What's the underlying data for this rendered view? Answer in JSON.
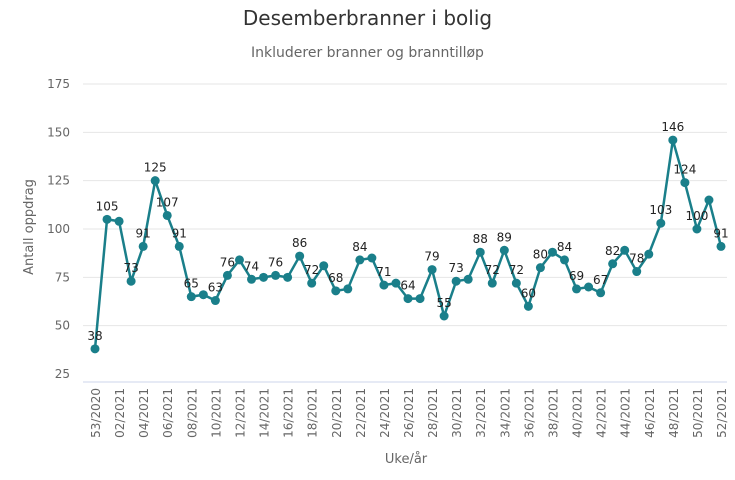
{
  "chart_data": {
    "type": "line",
    "title": "Desemberbranner i bolig",
    "subtitle": "Inkluderer branner og branntilløp",
    "xlabel": "Uke/år",
    "ylabel": "Antall oppdrag",
    "ylim": [
      25,
      175
    ],
    "yticks": [
      25,
      50,
      75,
      100,
      125,
      150,
      175
    ],
    "grid": true,
    "legend": "none",
    "color": "#1a7f8a",
    "x_tick_labels": [
      "53/2020",
      "02/2021",
      "04/2021",
      "06/2021",
      "08/2021",
      "10/2021",
      "12/2021",
      "14/2021",
      "16/2021",
      "18/2021",
      "20/2021",
      "22/2021",
      "24/2021",
      "26/2021",
      "28/2021",
      "30/2021",
      "32/2021",
      "34/2021",
      "36/2021",
      "38/2021",
      "40/2021",
      "42/2021",
      "44/2021",
      "46/2021",
      "48/2021",
      "50/2021",
      "52/2021"
    ],
    "values": [
      38,
      105,
      104,
      73,
      91,
      125,
      107,
      91,
      65,
      66,
      63,
      76,
      84,
      74,
      75,
      76,
      75,
      86,
      72,
      81,
      68,
      69,
      84,
      85,
      71,
      72,
      64,
      64,
      79,
      55,
      73,
      74,
      88,
      72,
      89,
      72,
      60,
      80,
      88,
      84,
      69,
      70,
      67,
      82,
      89,
      78,
      87,
      103,
      146,
      124,
      100,
      115,
      91
    ],
    "labels": [
      "38",
      "105",
      "",
      "73",
      "91",
      "125",
      "107",
      "91",
      "65",
      "",
      "63",
      "76",
      "",
      "74",
      "",
      "76",
      "",
      "86",
      "72",
      "",
      "68",
      "",
      "84",
      "",
      "71",
      "",
      "64",
      "",
      "79",
      "55",
      "73",
      "",
      "88",
      "72",
      "89",
      "72",
      "60",
      "80",
      "",
      "84",
      "69",
      "",
      "67",
      "82",
      "",
      "78",
      "",
      "103",
      "146",
      "124",
      "100",
      "",
      "91"
    ]
  }
}
